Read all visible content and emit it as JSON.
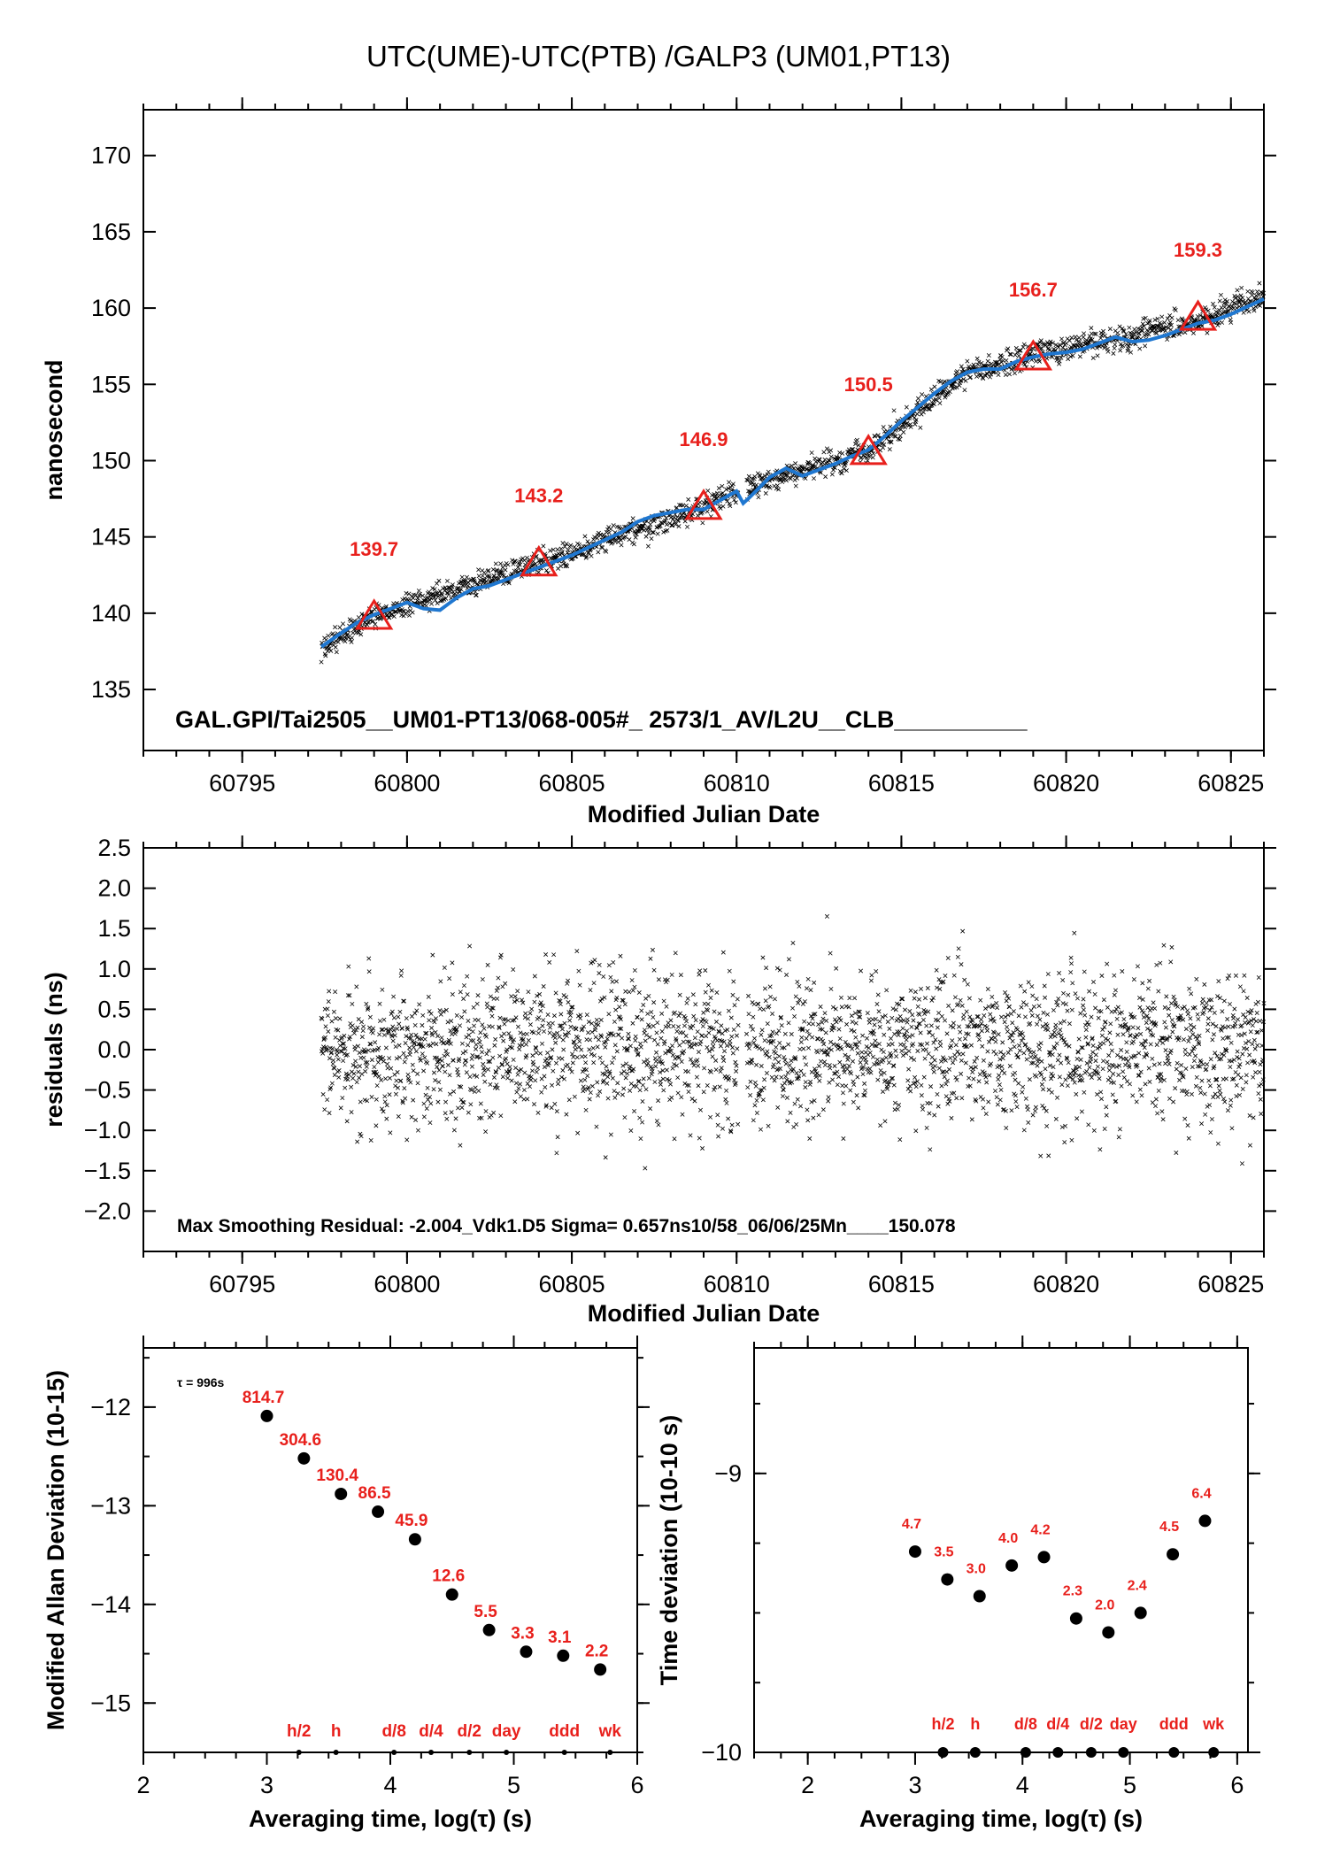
{
  "title": "UTC(UME)-UTC(PTB)  /GALP3  (UM01,PT13)",
  "colors": {
    "points": "#000000",
    "smooth": "#1f77d0",
    "markers": "#e8201c",
    "labels": "#e8201c"
  },
  "chart_data": [
    {
      "type": "scatter",
      "name": "offset",
      "xlabel": "Modified Julian Date",
      "ylabel": "nanosecond",
      "xlim": [
        60792,
        60826
      ],
      "ylim": [
        131,
        173
      ],
      "xticks": [
        "60795",
        "60800",
        "60805",
        "60810",
        "60815",
        "60820",
        "60825"
      ],
      "yticks": [
        "135",
        "140",
        "145",
        "150",
        "155",
        "160",
        "165",
        "170"
      ],
      "data_extent_x": [
        60797.4,
        60826
      ],
      "trend_points": [
        [
          60797.4,
          137.6
        ],
        [
          60799,
          139.8
        ],
        [
          60804,
          143.3
        ],
        [
          60809,
          146.9
        ],
        [
          60810.2,
          148.2
        ],
        [
          60814,
          150.6
        ],
        [
          60817,
          155.8
        ],
        [
          60819,
          156.9
        ],
        [
          60822,
          158.2
        ],
        [
          60824,
          159.1
        ],
        [
          60826,
          160.8
        ]
      ],
      "smooth_curve": {
        "color": "#1f77d0",
        "points": [
          [
            60797.4,
            137.8
          ],
          [
            60798,
            138.7
          ],
          [
            60798.5,
            139.4
          ],
          [
            60799,
            139.9
          ],
          [
            60799.5,
            140.3
          ],
          [
            60800,
            140.7
          ],
          [
            60800.5,
            140.3
          ],
          [
            60801,
            140.2
          ],
          [
            60801.5,
            141.0
          ],
          [
            60802,
            141.6
          ],
          [
            60802.5,
            141.8
          ],
          [
            60803,
            142.2
          ],
          [
            60803.5,
            142.6
          ],
          [
            60804,
            143.0
          ],
          [
            60804.5,
            143.4
          ],
          [
            60805,
            143.8
          ],
          [
            60805.5,
            144.3
          ],
          [
            60806,
            144.8
          ],
          [
            60806.5,
            145.3
          ],
          [
            60807,
            146.0
          ],
          [
            60807.5,
            146.4
          ],
          [
            60808,
            146.6
          ],
          [
            60808.5,
            146.8
          ],
          [
            60809,
            146.8
          ],
          [
            60809.5,
            147.4
          ],
          [
            60810.0,
            148.0
          ],
          [
            60810.2,
            147.2
          ],
          [
            60810.4,
            147.6
          ],
          [
            60811,
            148.9
          ],
          [
            60811.5,
            149.5
          ],
          [
            60812,
            149.0
          ],
          [
            60812.5,
            149.4
          ],
          [
            60813,
            149.8
          ],
          [
            60813.5,
            150.3
          ],
          [
            60814,
            150.7
          ],
          [
            60814.5,
            151.6
          ],
          [
            60815,
            152.6
          ],
          [
            60815.5,
            153.5
          ],
          [
            60816,
            154.4
          ],
          [
            60816.5,
            155.2
          ],
          [
            60817,
            155.8
          ],
          [
            60817.5,
            156.0
          ],
          [
            60818,
            156.0
          ],
          [
            60818.5,
            156.5
          ],
          [
            60819,
            156.8
          ],
          [
            60819.5,
            157.0
          ],
          [
            60820,
            157.1
          ],
          [
            60820.5,
            157.3
          ],
          [
            60821,
            157.7
          ],
          [
            60821.5,
            158.1
          ],
          [
            60822,
            157.8
          ],
          [
            60822.5,
            157.9
          ],
          [
            60823,
            158.2
          ],
          [
            60823.5,
            158.6
          ],
          [
            60824,
            159.0
          ],
          [
            60824.5,
            159.2
          ],
          [
            60825,
            159.6
          ],
          [
            60825.5,
            160.1
          ],
          [
            60826,
            160.6
          ]
        ]
      },
      "markers": {
        "shape": "triangle",
        "color": "#e8201c",
        "points": [
          {
            "x": 60799,
            "y": 139.7,
            "label": "139.7"
          },
          {
            "x": 60804,
            "y": 143.2,
            "label": "143.2"
          },
          {
            "x": 60809,
            "y": 146.9,
            "label": "146.9"
          },
          {
            "x": 60814,
            "y": 150.5,
            "label": "150.5"
          },
          {
            "x": 60819,
            "y": 156.7,
            "label": "156.7"
          },
          {
            "x": 60824,
            "y": 159.3,
            "label": "159.3"
          }
        ]
      },
      "annotation": "GAL.GPI/Tai2505__UM01-PT13/068-005#_  2573/1_AV/L2U__CLB__________"
    },
    {
      "type": "scatter",
      "name": "residuals",
      "xlabel": "Modified Julian Date",
      "ylabel": "residuals (ns)",
      "xlim": [
        60792,
        60826
      ],
      "ylim": [
        -2.5,
        2.5
      ],
      "xticks": [
        "60795",
        "60800",
        "60805",
        "60810",
        "60815",
        "60820",
        "60825"
      ],
      "yticks": [
        "−2.0",
        "−1.5",
        "−1.0",
        "−0.5",
        "0.0",
        "0.5",
        "1.0",
        "1.5",
        "2.0",
        "2.5"
      ],
      "data_extent_x": [
        60797.4,
        60826
      ],
      "sigma": 0.657,
      "max_residual": -2.004,
      "annotation": "Max Smoothing Residual: -2.004_Vdk1.D5  Sigma= 0.657ns10/58_06/06/25Mn____150.078"
    },
    {
      "type": "scatter",
      "name": "modified-allan-deviation",
      "xlabel": "Averaging time, log(τ) (s)",
      "ylabel": "Modified Allan Deviation (10-15)",
      "xlim": [
        2,
        6
      ],
      "ylim": [
        -15.5,
        -11.4
      ],
      "xticks": [
        "2",
        "3",
        "4",
        "5",
        "6"
      ],
      "yticks": [
        "−15",
        "−14",
        "−13",
        "−12"
      ],
      "tau0_note": "τ = 996s",
      "points": [
        {
          "x": 3.0,
          "y": -12.09,
          "label": "814.7"
        },
        {
          "x": 3.3,
          "y": -12.52,
          "label": "304.6"
        },
        {
          "x": 3.6,
          "y": -12.88,
          "label": "130.4"
        },
        {
          "x": 3.9,
          "y": -13.06,
          "label": "86.5"
        },
        {
          "x": 4.2,
          "y": -13.34,
          "label": "45.9"
        },
        {
          "x": 4.5,
          "y": -13.9,
          "label": "12.6"
        },
        {
          "x": 4.8,
          "y": -14.26,
          "label": "5.5"
        },
        {
          "x": 5.1,
          "y": -14.48,
          "label": "3.3"
        },
        {
          "x": 5.4,
          "y": -14.52,
          "label": "3.1"
        },
        {
          "x": 5.7,
          "y": -14.66,
          "label": "2.2"
        }
      ],
      "reference_marks": [
        {
          "x": 3.26,
          "label": "h/2"
        },
        {
          "x": 3.56,
          "label": "h"
        },
        {
          "x": 4.03,
          "label": "d/8"
        },
        {
          "x": 4.33,
          "label": "d/4"
        },
        {
          "x": 4.64,
          "label": "d/2"
        },
        {
          "x": 4.94,
          "label": "day"
        },
        {
          "x": 5.41,
          "label": "ddd"
        },
        {
          "x": 5.78,
          "label": "wk"
        }
      ]
    },
    {
      "type": "scatter",
      "name": "time-deviation",
      "xlabel": "Averaging time, log(τ) (s)",
      "ylabel": "Time deviation (10-10 s)",
      "xlim": [
        1.5,
        6.1
      ],
      "ylim": [
        -10,
        -8.55
      ],
      "xticks": [
        "2",
        "3",
        "4",
        "5",
        "6"
      ],
      "yticks": [
        "−10",
        "−9"
      ],
      "points": [
        {
          "x": 3.0,
          "y": -9.28,
          "label": "4.7"
        },
        {
          "x": 3.3,
          "y": -9.38,
          "label": "3.5"
        },
        {
          "x": 3.6,
          "y": -9.44,
          "label": "3.0"
        },
        {
          "x": 3.9,
          "y": -9.33,
          "label": "4.0"
        },
        {
          "x": 4.2,
          "y": -9.3,
          "label": "4.2"
        },
        {
          "x": 4.5,
          "y": -9.52,
          "label": "2.3"
        },
        {
          "x": 4.8,
          "y": -9.57,
          "label": "2.0"
        },
        {
          "x": 5.1,
          "y": -9.5,
          "label": "2.4"
        },
        {
          "x": 5.4,
          "y": -9.29,
          "label": "4.5"
        },
        {
          "x": 5.7,
          "y": -9.17,
          "label": "6.4"
        }
      ],
      "reference_marks": [
        {
          "x": 3.26,
          "label": "h/2"
        },
        {
          "x": 3.56,
          "label": "h"
        },
        {
          "x": 4.03,
          "label": "d/8"
        },
        {
          "x": 4.33,
          "label": "d/4"
        },
        {
          "x": 4.64,
          "label": "d/2"
        },
        {
          "x": 4.94,
          "label": "day"
        },
        {
          "x": 5.41,
          "label": "ddd"
        },
        {
          "x": 5.78,
          "label": "wk"
        }
      ]
    }
  ]
}
